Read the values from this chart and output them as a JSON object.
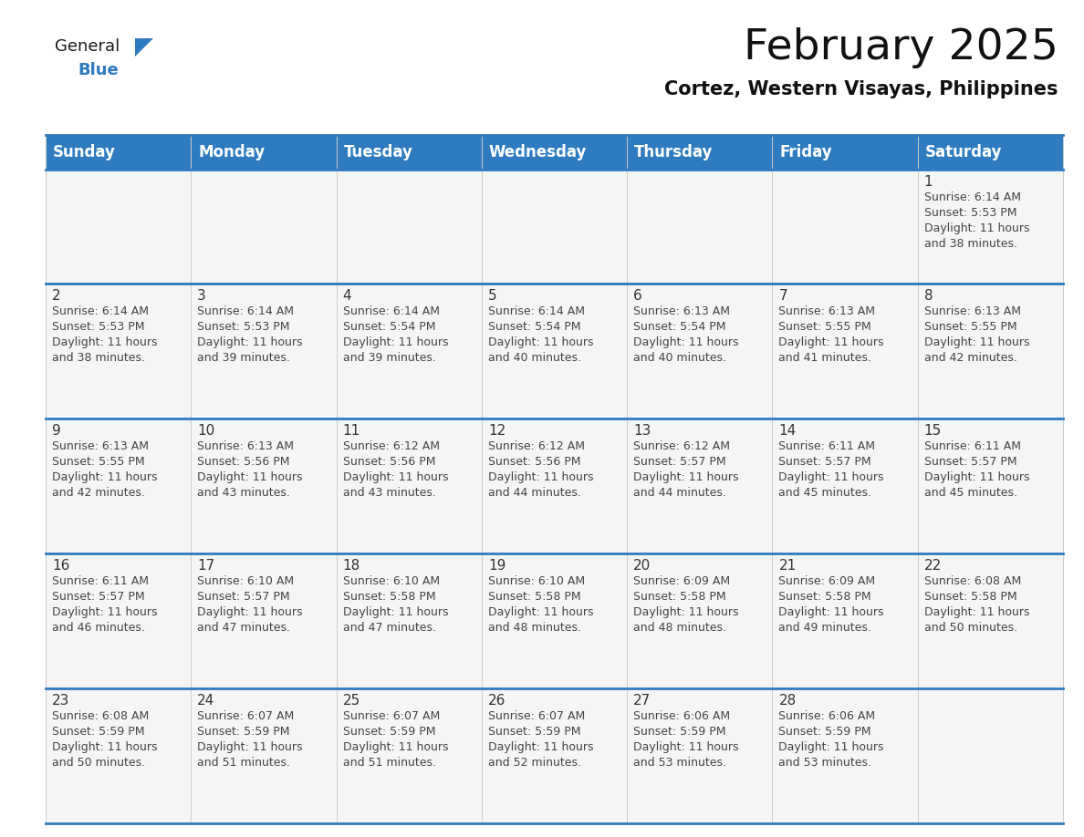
{
  "title": "February 2025",
  "subtitle": "Cortez, Western Visayas, Philippines",
  "header_bg_color": "#2e7bbf",
  "header_text_color": "#ffffff",
  "day_names": [
    "Sunday",
    "Monday",
    "Tuesday",
    "Wednesday",
    "Thursday",
    "Friday",
    "Saturday"
  ],
  "row0_bg": "#eeeeee",
  "row_bg": "#f7f7f7",
  "alt_row_bg": "#ffffff",
  "border_color": "#2e7bbf",
  "cell_border_color": "#aaaaaa",
  "text_color": "#444444",
  "days": [
    {
      "day": 1,
      "col": 6,
      "row": 0,
      "sunrise": "6:14 AM",
      "sunset": "5:53 PM",
      "daylight": "11 hours and 38 minutes."
    },
    {
      "day": 2,
      "col": 0,
      "row": 1,
      "sunrise": "6:14 AM",
      "sunset": "5:53 PM",
      "daylight": "11 hours and 38 minutes."
    },
    {
      "day": 3,
      "col": 1,
      "row": 1,
      "sunrise": "6:14 AM",
      "sunset": "5:53 PM",
      "daylight": "11 hours and 39 minutes."
    },
    {
      "day": 4,
      "col": 2,
      "row": 1,
      "sunrise": "6:14 AM",
      "sunset": "5:54 PM",
      "daylight": "11 hours and 39 minutes."
    },
    {
      "day": 5,
      "col": 3,
      "row": 1,
      "sunrise": "6:14 AM",
      "sunset": "5:54 PM",
      "daylight": "11 hours and 40 minutes."
    },
    {
      "day": 6,
      "col": 4,
      "row": 1,
      "sunrise": "6:13 AM",
      "sunset": "5:54 PM",
      "daylight": "11 hours and 40 minutes."
    },
    {
      "day": 7,
      "col": 5,
      "row": 1,
      "sunrise": "6:13 AM",
      "sunset": "5:55 PM",
      "daylight": "11 hours and 41 minutes."
    },
    {
      "day": 8,
      "col": 6,
      "row": 1,
      "sunrise": "6:13 AM",
      "sunset": "5:55 PM",
      "daylight": "11 hours and 42 minutes."
    },
    {
      "day": 9,
      "col": 0,
      "row": 2,
      "sunrise": "6:13 AM",
      "sunset": "5:55 PM",
      "daylight": "11 hours and 42 minutes."
    },
    {
      "day": 10,
      "col": 1,
      "row": 2,
      "sunrise": "6:13 AM",
      "sunset": "5:56 PM",
      "daylight": "11 hours and 43 minutes."
    },
    {
      "day": 11,
      "col": 2,
      "row": 2,
      "sunrise": "6:12 AM",
      "sunset": "5:56 PM",
      "daylight": "11 hours and 43 minutes."
    },
    {
      "day": 12,
      "col": 3,
      "row": 2,
      "sunrise": "6:12 AM",
      "sunset": "5:56 PM",
      "daylight": "11 hours and 44 minutes."
    },
    {
      "day": 13,
      "col": 4,
      "row": 2,
      "sunrise": "6:12 AM",
      "sunset": "5:57 PM",
      "daylight": "11 hours and 44 minutes."
    },
    {
      "day": 14,
      "col": 5,
      "row": 2,
      "sunrise": "6:11 AM",
      "sunset": "5:57 PM",
      "daylight": "11 hours and 45 minutes."
    },
    {
      "day": 15,
      "col": 6,
      "row": 2,
      "sunrise": "6:11 AM",
      "sunset": "5:57 PM",
      "daylight": "11 hours and 45 minutes."
    },
    {
      "day": 16,
      "col": 0,
      "row": 3,
      "sunrise": "6:11 AM",
      "sunset": "5:57 PM",
      "daylight": "11 hours and 46 minutes."
    },
    {
      "day": 17,
      "col": 1,
      "row": 3,
      "sunrise": "6:10 AM",
      "sunset": "5:57 PM",
      "daylight": "11 hours and 47 minutes."
    },
    {
      "day": 18,
      "col": 2,
      "row": 3,
      "sunrise": "6:10 AM",
      "sunset": "5:58 PM",
      "daylight": "11 hours and 47 minutes."
    },
    {
      "day": 19,
      "col": 3,
      "row": 3,
      "sunrise": "6:10 AM",
      "sunset": "5:58 PM",
      "daylight": "11 hours and 48 minutes."
    },
    {
      "day": 20,
      "col": 4,
      "row": 3,
      "sunrise": "6:09 AM",
      "sunset": "5:58 PM",
      "daylight": "11 hours and 48 minutes."
    },
    {
      "day": 21,
      "col": 5,
      "row": 3,
      "sunrise": "6:09 AM",
      "sunset": "5:58 PM",
      "daylight": "11 hours and 49 minutes."
    },
    {
      "day": 22,
      "col": 6,
      "row": 3,
      "sunrise": "6:08 AM",
      "sunset": "5:58 PM",
      "daylight": "11 hours and 50 minutes."
    },
    {
      "day": 23,
      "col": 0,
      "row": 4,
      "sunrise": "6:08 AM",
      "sunset": "5:59 PM",
      "daylight": "11 hours and 50 minutes."
    },
    {
      "day": 24,
      "col": 1,
      "row": 4,
      "sunrise": "6:07 AM",
      "sunset": "5:59 PM",
      "daylight": "11 hours and 51 minutes."
    },
    {
      "day": 25,
      "col": 2,
      "row": 4,
      "sunrise": "6:07 AM",
      "sunset": "5:59 PM",
      "daylight": "11 hours and 51 minutes."
    },
    {
      "day": 26,
      "col": 3,
      "row": 4,
      "sunrise": "6:07 AM",
      "sunset": "5:59 PM",
      "daylight": "11 hours and 52 minutes."
    },
    {
      "day": 27,
      "col": 4,
      "row": 4,
      "sunrise": "6:06 AM",
      "sunset": "5:59 PM",
      "daylight": "11 hours and 53 minutes."
    },
    {
      "day": 28,
      "col": 5,
      "row": 4,
      "sunrise": "6:06 AM",
      "sunset": "5:59 PM",
      "daylight": "11 hours and 53 minutes."
    }
  ],
  "logo_color_general": "#1a1a1a",
  "logo_color_blue": "#2e7bbf",
  "title_fontsize": 34,
  "subtitle_fontsize": 15,
  "header_fontsize": 12,
  "day_num_fontsize": 11,
  "info_fontsize": 9
}
